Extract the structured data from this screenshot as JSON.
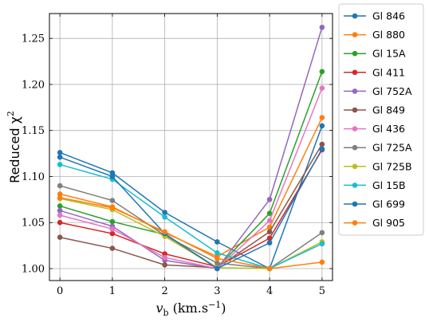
{
  "chart_data": {
    "type": "line",
    "xlabel_main": "v",
    "xlabel_sub": "b",
    "xlabel_unit": " (km.s",
    "xlabel_exp": "−1",
    "xlabel_close": ")",
    "ylabel_main": "Reduced  χ",
    "ylabel_exp": "2",
    "x": [
      0,
      1,
      2,
      3,
      4,
      5
    ],
    "xlim": [
      -0.2,
      5.2
    ],
    "ylim": [
      0.987,
      1.277
    ],
    "xticks": [
      "0",
      "1",
      "2",
      "3",
      "4",
      "5"
    ],
    "yticks": [
      "1.00",
      "1.05",
      "1.10",
      "1.15",
      "1.20",
      "1.25"
    ],
    "grid": true,
    "legend_position": "outside-right",
    "series": [
      {
        "name": "Gl 846",
        "color": "#1f77b4",
        "values": [
          1.126,
          1.104,
          1.061,
          1.029,
          1.0,
          1.155
        ]
      },
      {
        "name": "Gl 880",
        "color": "#ff7f0e",
        "values": [
          1.081,
          1.067,
          1.039,
          1.013,
          1.045,
          1.164
        ]
      },
      {
        "name": "Gl 15A",
        "color": "#2ca02c",
        "values": [
          1.068,
          1.051,
          1.037,
          1.001,
          1.06,
          1.214
        ]
      },
      {
        "name": "Gl 411",
        "color": "#d62728",
        "values": [
          1.05,
          1.038,
          1.016,
          1.002,
          1.033,
          1.129
        ]
      },
      {
        "name": "Gl 752A",
        "color": "#9467bd",
        "values": [
          1.063,
          1.046,
          1.009,
          1.0,
          1.075,
          1.262
        ]
      },
      {
        "name": "Gl 849",
        "color": "#8c564b",
        "values": [
          1.034,
          1.022,
          1.004,
          1.001,
          1.04,
          1.135
        ]
      },
      {
        "name": "Gl 436",
        "color": "#e377c2",
        "values": [
          1.058,
          1.043,
          1.012,
          1.0,
          1.052,
          1.196
        ]
      },
      {
        "name": "Gl 725A",
        "color": "#7f7f7f",
        "values": [
          1.09,
          1.074,
          1.036,
          1.006,
          1.0,
          1.039
        ]
      },
      {
        "name": "Gl 725B",
        "color": "#bcbd22",
        "values": [
          1.076,
          1.064,
          1.035,
          1.001,
          1.0,
          1.029
        ]
      },
      {
        "name": "Gl 15B",
        "color": "#17becf",
        "values": [
          1.113,
          1.097,
          1.056,
          1.017,
          1.0,
          1.027
        ]
      },
      {
        "name": "Gl 699",
        "color": "#1f77b4",
        "values": [
          1.121,
          1.1,
          1.038,
          1.0,
          1.028,
          1.13
        ]
      },
      {
        "name": "Gl 905",
        "color": "#ff7f0e",
        "values": [
          1.077,
          1.066,
          1.04,
          1.011,
          1.0,
          1.007
        ]
      }
    ]
  }
}
